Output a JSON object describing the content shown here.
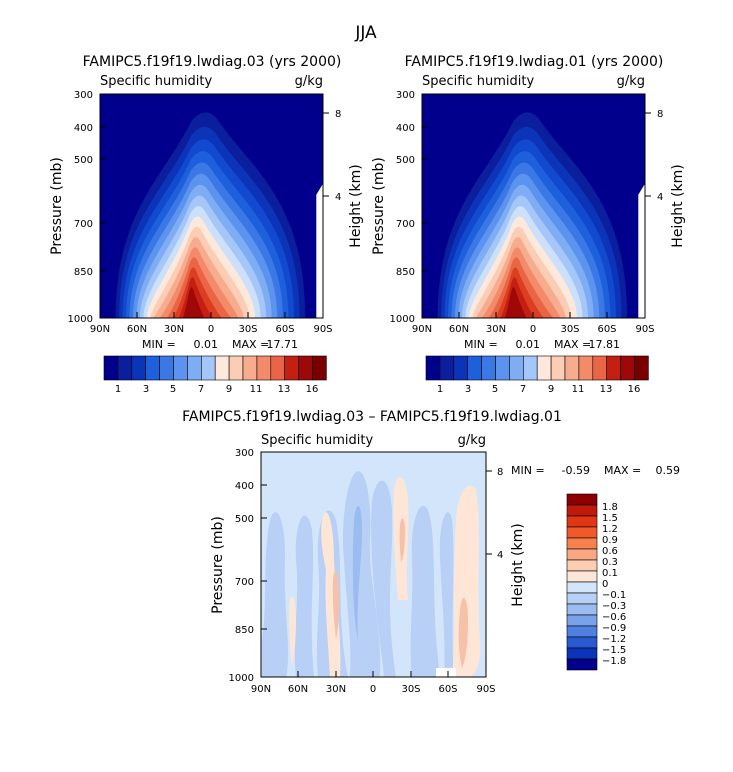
{
  "figure_title": "JJA",
  "chart_data": [
    {
      "type": "heatmap",
      "title": "FAMIPC5.f19f19.lwdiag.03 (yrs 2000)",
      "field": "Specific humidity",
      "units": "g/kg",
      "xlabel": "",
      "ylabel": "Pressure (mb)",
      "y2label": "Height (km)",
      "x_ticks": [
        "90N",
        "60N",
        "30N",
        "0",
        "30S",
        "60S",
        "90S"
      ],
      "y_ticks": [
        "300",
        "400",
        "500",
        "700",
        "850",
        "1000"
      ],
      "y2_ticks": [
        "8",
        "4"
      ],
      "min_label": "MIN =",
      "min_value": "0.01",
      "max_label": "MAX =",
      "max_value": "17.71",
      "colorbar_labels": [
        "1",
        "3",
        "5",
        "7",
        "9",
        "11",
        "13",
        "16"
      ]
    },
    {
      "type": "heatmap",
      "title": "FAMIPC5.f19f19.lwdiag.01 (yrs 2000)",
      "field": "Specific humidity",
      "units": "g/kg",
      "xlabel": "",
      "ylabel": "Pressure (mb)",
      "y2label": "Height (km)",
      "x_ticks": [
        "90N",
        "60N",
        "30N",
        "0",
        "30S",
        "60S",
        "90S"
      ],
      "y_ticks": [
        "300",
        "400",
        "500",
        "700",
        "850",
        "1000"
      ],
      "y2_ticks": [
        "8",
        "4"
      ],
      "min_label": "MIN =",
      "min_value": "0.01",
      "max_label": "MAX =",
      "max_value": "17.81",
      "colorbar_labels": [
        "1",
        "3",
        "5",
        "7",
        "9",
        "11",
        "13",
        "16"
      ]
    },
    {
      "type": "heatmap",
      "title": "FAMIPC5.f19f19.lwdiag.03 – FAMIPC5.f19f19.lwdiag.01",
      "field": "Specific humidity",
      "units": "g/kg",
      "xlabel": "",
      "ylabel": "Pressure (mb)",
      "y2label": "Height (km)",
      "x_ticks": [
        "90N",
        "60N",
        "30N",
        "0",
        "30S",
        "60S",
        "90S"
      ],
      "y_ticks": [
        "300",
        "400",
        "500",
        "700",
        "850",
        "1000"
      ],
      "y2_ticks": [
        "8",
        "4"
      ],
      "min_label": "MIN =",
      "min_value": "-0.59",
      "max_label": "MAX =",
      "max_value": "0.59",
      "colorbar_labels": [
        "1.8",
        "1.5",
        "1.2",
        "0.9",
        "0.6",
        "0.3",
        "0.1",
        "0",
        "−0.1",
        "−0.3",
        "−0.6",
        "−0.9",
        "−1.2",
        "−1.5",
        "−1.8"
      ]
    }
  ]
}
